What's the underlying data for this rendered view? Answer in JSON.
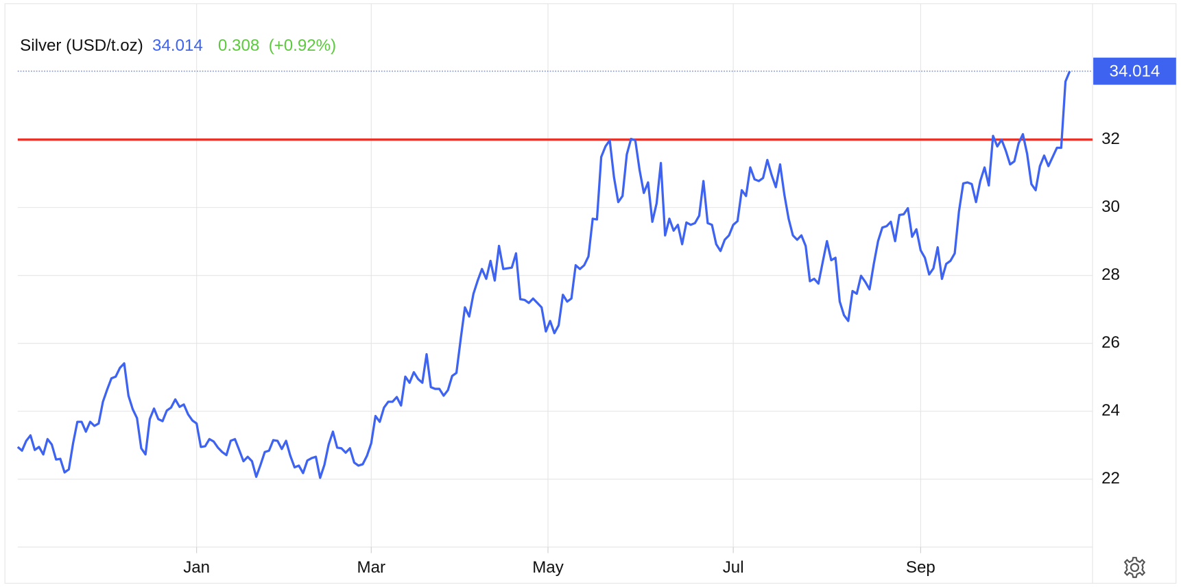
{
  "chart_data": {
    "type": "line",
    "series": [
      {
        "name": "Silver (USD/t.oz)",
        "color": "#3d63f0",
        "values": [
          22.95,
          22.84,
          23.13,
          23.29,
          22.86,
          22.95,
          22.73,
          23.18,
          23.02,
          22.58,
          22.6,
          22.2,
          22.29,
          23.06,
          23.69,
          23.69,
          23.4,
          23.69,
          23.57,
          23.64,
          24.28,
          24.64,
          24.97,
          25.02,
          25.28,
          25.41,
          24.46,
          24.06,
          23.8,
          22.91,
          22.73,
          23.77,
          24.08,
          23.77,
          23.71,
          24.02,
          24.11,
          24.35,
          24.13,
          24.2,
          23.91,
          23.73,
          23.64,
          22.95,
          22.97,
          23.18,
          23.11,
          22.93,
          22.8,
          22.71,
          23.13,
          23.18,
          22.86,
          22.53,
          22.66,
          22.53,
          22.07,
          22.42,
          22.8,
          22.84,
          23.15,
          23.13,
          22.89,
          23.13,
          22.69,
          22.35,
          22.4,
          22.18,
          22.55,
          22.62,
          22.66,
          22.04,
          22.42,
          23.02,
          23.4,
          22.93,
          22.91,
          22.78,
          22.91,
          22.49,
          22.4,
          22.44,
          22.69,
          23.06,
          23.86,
          23.69,
          24.11,
          24.28,
          24.28,
          24.42,
          24.17,
          25.02,
          24.84,
          25.15,
          24.95,
          24.84,
          25.68,
          24.71,
          24.66,
          24.66,
          24.46,
          24.62,
          25.04,
          25.13,
          26.12,
          27.06,
          26.79,
          27.46,
          27.85,
          28.19,
          27.9,
          28.43,
          27.85,
          28.87,
          28.19,
          28.21,
          28.23,
          28.65,
          27.3,
          27.28,
          27.19,
          27.32,
          27.19,
          27.06,
          26.35,
          26.66,
          26.3,
          26.53,
          27.43,
          27.23,
          27.32,
          28.3,
          28.19,
          28.3,
          28.56,
          29.67,
          29.65,
          31.49,
          31.8,
          31.98,
          30.89,
          30.16,
          30.34,
          31.56,
          32.02,
          31.98,
          31.11,
          30.43,
          30.74,
          29.58,
          30.12,
          31.31,
          29.18,
          29.67,
          29.32,
          29.49,
          28.92,
          29.56,
          29.49,
          29.54,
          29.76,
          30.78,
          29.54,
          29.49,
          28.92,
          28.72,
          29.05,
          29.18,
          29.49,
          29.6,
          30.51,
          30.34,
          31.18,
          30.83,
          30.78,
          30.87,
          31.4,
          30.96,
          30.6,
          31.27,
          30.38,
          29.67,
          29.18,
          29.05,
          29.18,
          28.87,
          27.83,
          27.9,
          27.76,
          28.39,
          29.01,
          28.45,
          28.52,
          27.23,
          26.83,
          26.66,
          27.54,
          27.46,
          27.99,
          27.81,
          27.59,
          28.34,
          29.01,
          29.41,
          29.45,
          29.58,
          29.01,
          29.78,
          29.8,
          29.98,
          29.14,
          29.36,
          28.74,
          28.52,
          28.03,
          28.21,
          28.83,
          27.9,
          28.34,
          28.43,
          28.65,
          29.89,
          30.71,
          30.74,
          30.69,
          30.16,
          30.78,
          31.18,
          30.65,
          32.11,
          31.8,
          32.0,
          31.67,
          31.27,
          31.36,
          31.89,
          32.16,
          31.58,
          30.69,
          30.51,
          31.22,
          31.53,
          31.22,
          31.49,
          31.76,
          31.76,
          33.71,
          34.014
        ]
      }
    ],
    "price": "34.014",
    "price_color": "#3d63f0",
    "change": "0.308",
    "change_percent": "(+0.92%)",
    "change_color": "#5cc93f",
    "hline": {
      "value": 32,
      "color": "#e8332a"
    },
    "xlim": [
      0,
      252
    ],
    "xticks": [
      {
        "value": 42,
        "label": "Jan"
      },
      {
        "value": 83,
        "label": "Mar"
      },
      {
        "value": 124.5,
        "label": "May"
      },
      {
        "value": 168,
        "label": "Jul"
      },
      {
        "value": 212,
        "label": "Sep"
      }
    ],
    "ylim": [
      20,
      36
    ],
    "yticks": [
      22,
      24,
      26,
      28,
      30,
      32
    ],
    "grid": true
  }
}
